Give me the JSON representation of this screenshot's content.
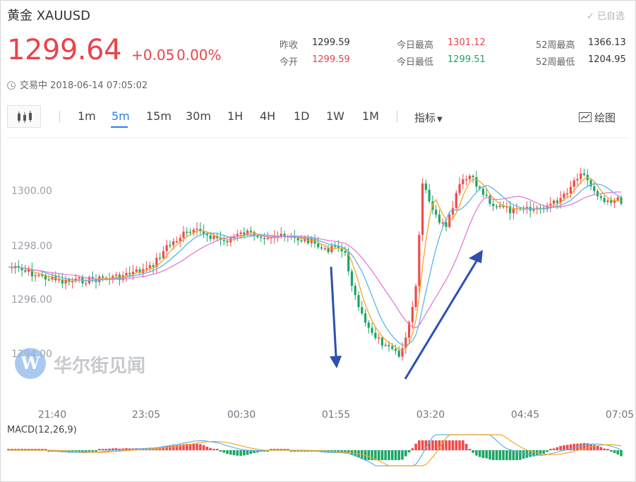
{
  "header": {
    "title": "黄金 XAUUSD",
    "watch_label": "已自选"
  },
  "quote": {
    "price": "1299.64",
    "change": "+0.05",
    "change_pct": "0.00%",
    "status": "交易中 2018-06-14 07:05:02"
  },
  "stats": {
    "prev_close_label": "昨收",
    "prev_close": "1299.59",
    "open_label": "今开",
    "open": "1299.59",
    "high_label": "今日最高",
    "high": "1301.12",
    "low_label": "今日最低",
    "low": "1299.51",
    "w52_high_label": "52周最高",
    "w52_high": "1366.13",
    "w52_low_label": "52周最低",
    "w52_low": "1204.95"
  },
  "toolbar": {
    "timeframes": [
      "1m",
      "5m",
      "15m",
      "30m",
      "1H",
      "4H",
      "1D",
      "1W",
      "1M"
    ],
    "active_timeframe": "5m",
    "indicators_label": "指标",
    "draw_label": "绘图"
  },
  "chart": {
    "y_labels": [
      "1300.00",
      "1298.00",
      "1296.00",
      "1294.00"
    ],
    "x_labels": [
      "21:40",
      "23:05",
      "00:30",
      "01:55",
      "03:20",
      "04:45",
      "07:05"
    ],
    "macd_label": "MACD(12,26,9)",
    "watermark": "华尔街见闻",
    "colors": {
      "up": "#ef4a4a",
      "down": "#1ca665",
      "ma5": "#f5a623",
      "ma10": "#5ab6e8",
      "ma20": "#e77bd0",
      "arrow": "#2d4fb0"
    }
  }
}
